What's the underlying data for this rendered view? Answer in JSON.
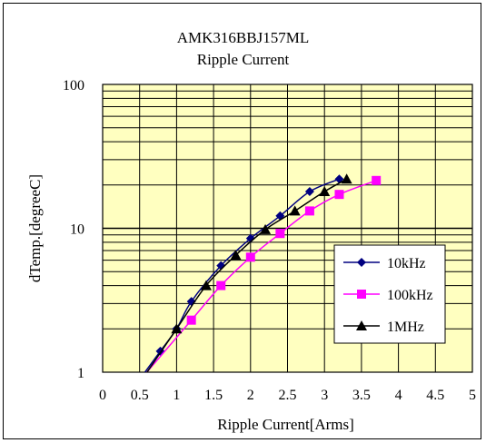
{
  "chart_data": {
    "type": "line",
    "title": "AMK316BBJ157ML",
    "subtitle": "Ripple Current",
    "xlabel": "Ripple Current[Arms]",
    "ylabel": "dTemp.[degreeC]",
    "xlim": [
      0,
      5
    ],
    "ylim": [
      1,
      100
    ],
    "yscale": "log",
    "x_ticks": [
      "0",
      "0.5",
      "1",
      "1.5",
      "2",
      "2.5",
      "3",
      "3.5",
      "4",
      "4.5",
      "5"
    ],
    "y_ticks": [
      "1",
      "10",
      "100"
    ],
    "grid": true,
    "legend_position": "lower-right",
    "background_color": "#ffffc0",
    "series": [
      {
        "name": "10kHz",
        "color": "#000080",
        "marker": "diamond",
        "x": [
          0.78,
          1.0,
          1.2,
          1.6,
          2.0,
          2.4,
          2.8,
          3.2
        ],
        "y": [
          1.4,
          2.0,
          3.1,
          5.5,
          8.5,
          12.2,
          18.0,
          22.0
        ]
      },
      {
        "name": "100kHz",
        "color": "#ff00ff",
        "marker": "square",
        "x": [
          1.2,
          1.6,
          2.0,
          2.4,
          2.8,
          3.2,
          3.7
        ],
        "y": [
          2.3,
          4.0,
          6.3,
          9.2,
          13.2,
          17.2,
          21.5
        ]
      },
      {
        "name": "1MHz",
        "color": "#000000",
        "marker": "triangle",
        "x": [
          1.0,
          1.4,
          1.8,
          2.2,
          2.6,
          3.0,
          3.3
        ],
        "y": [
          2.0,
          4.0,
          6.5,
          9.8,
          13.2,
          18.0,
          22.0
        ]
      }
    ]
  }
}
